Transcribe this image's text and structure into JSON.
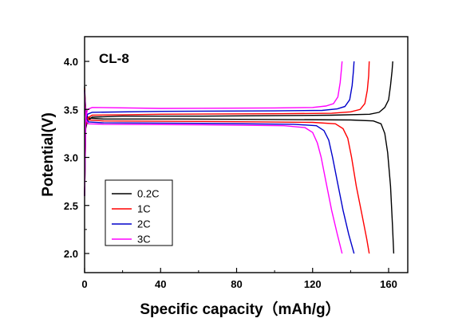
{
  "chart_data": {
    "type": "line",
    "title": "",
    "annotation": "CL-8",
    "xlabel": "Specific capacity（mAh/g）",
    "ylabel": "Potential(V)",
    "xlim": [
      0,
      170
    ],
    "ylim": [
      1.9,
      4.2
    ],
    "x_ticks": [
      0,
      40,
      80,
      120,
      160
    ],
    "y_ticks": [
      2.0,
      2.5,
      3.0,
      3.5,
      4.0
    ],
    "x_tick_labels": [
      "0",
      "40",
      "80",
      "120",
      "160"
    ],
    "y_tick_labels": [
      "2.0",
      "2.5",
      "3.0",
      "3.5",
      "4.0"
    ],
    "grid": false,
    "legend_position": "lower-left",
    "series": [
      {
        "name": "0.2C",
        "color": "#000000",
        "charge": [
          [
            0,
            2.6
          ],
          [
            0.6,
            3.3
          ],
          [
            1.5,
            3.38
          ],
          [
            4,
            3.42
          ],
          [
            20,
            3.43
          ],
          [
            60,
            3.43
          ],
          [
            100,
            3.435
          ],
          [
            130,
            3.44
          ],
          [
            150,
            3.45
          ],
          [
            155,
            3.47
          ],
          [
            158,
            3.52
          ],
          [
            160,
            3.6
          ],
          [
            161,
            3.75
          ],
          [
            161.8,
            3.9
          ],
          [
            162.2,
            4.0
          ]
        ],
        "discharge": [
          [
            162.7,
            4.0
          ],
          [
            0,
            3.74
          ],
          [
            0.3,
            3.6
          ],
          [
            0.8,
            3.45
          ],
          [
            2,
            3.41
          ],
          [
            10,
            3.4
          ],
          [
            50,
            3.4
          ],
          [
            100,
            3.395
          ],
          [
            140,
            3.39
          ],
          [
            152,
            3.38
          ],
          [
            156,
            3.35
          ],
          [
            158,
            3.25
          ],
          [
            159.5,
            3.05
          ],
          [
            161,
            2.7
          ],
          [
            162,
            2.3
          ],
          [
            162.7,
            2.0
          ]
        ]
      },
      {
        "name": "1C",
        "color": "#ff0000",
        "charge": [
          [
            0,
            2.6
          ],
          [
            0.6,
            3.33
          ],
          [
            1.5,
            3.41
          ],
          [
            4,
            3.44
          ],
          [
            40,
            3.45
          ],
          [
            100,
            3.455
          ],
          [
            130,
            3.46
          ],
          [
            140,
            3.475
          ],
          [
            145,
            3.5
          ],
          [
            147.5,
            3.56
          ],
          [
            148.8,
            3.7
          ],
          [
            149.5,
            3.85
          ],
          [
            149.8,
            4.0
          ]
        ],
        "discharge": [
          [
            0,
            3.72
          ],
          [
            0.3,
            3.58
          ],
          [
            0.8,
            3.43
          ],
          [
            2,
            3.39
          ],
          [
            10,
            3.38
          ],
          [
            60,
            3.375
          ],
          [
            120,
            3.365
          ],
          [
            132,
            3.35
          ],
          [
            136,
            3.3
          ],
          [
            138.5,
            3.2
          ],
          [
            140.5,
            3.0
          ],
          [
            143,
            2.7
          ],
          [
            146,
            2.4
          ],
          [
            148.5,
            2.15
          ],
          [
            149.8,
            2.0
          ]
        ]
      },
      {
        "name": "2C",
        "color": "#0000cc",
        "charge": [
          [
            0,
            2.6
          ],
          [
            0.6,
            3.36
          ],
          [
            1.5,
            3.45
          ],
          [
            4,
            3.47
          ],
          [
            40,
            3.48
          ],
          [
            100,
            3.485
          ],
          [
            125,
            3.49
          ],
          [
            133,
            3.505
          ],
          [
            137,
            3.53
          ],
          [
            139.5,
            3.6
          ],
          [
            140.8,
            3.75
          ],
          [
            141.5,
            3.9
          ],
          [
            141.8,
            4.0
          ]
        ],
        "discharge": [
          [
            0,
            3.7
          ],
          [
            0.3,
            3.55
          ],
          [
            0.8,
            3.41
          ],
          [
            2,
            3.37
          ],
          [
            10,
            3.36
          ],
          [
            60,
            3.355
          ],
          [
            110,
            3.345
          ],
          [
            122,
            3.33
          ],
          [
            126,
            3.28
          ],
          [
            128.5,
            3.18
          ],
          [
            130.5,
            3.0
          ],
          [
            133,
            2.75
          ],
          [
            136,
            2.45
          ],
          [
            139,
            2.2
          ],
          [
            141.8,
            2.0
          ]
        ]
      },
      {
        "name": "3C",
        "color": "#ff00ff",
        "charge": [
          [
            0,
            2.6
          ],
          [
            0.6,
            3.4
          ],
          [
            1.5,
            3.5
          ],
          [
            4,
            3.52
          ],
          [
            40,
            3.51
          ],
          [
            100,
            3.515
          ],
          [
            120,
            3.52
          ],
          [
            127,
            3.535
          ],
          [
            131,
            3.56
          ],
          [
            133.3,
            3.63
          ],
          [
            134.5,
            3.78
          ],
          [
            135.2,
            3.92
          ],
          [
            135.5,
            4.0
          ]
        ],
        "discharge": [
          [
            0,
            3.68
          ],
          [
            0.3,
            3.53
          ],
          [
            0.8,
            3.39
          ],
          [
            2,
            3.35
          ],
          [
            10,
            3.345
          ],
          [
            60,
            3.34
          ],
          [
            105,
            3.33
          ],
          [
            116,
            3.31
          ],
          [
            120,
            3.26
          ],
          [
            122.5,
            3.15
          ],
          [
            124.5,
            3.0
          ],
          [
            127,
            2.75
          ],
          [
            130,
            2.45
          ],
          [
            133,
            2.2
          ],
          [
            135.5,
            2.0
          ]
        ]
      }
    ]
  }
}
